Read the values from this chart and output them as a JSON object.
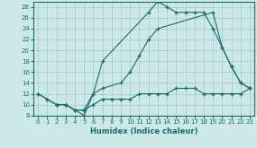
{
  "xlabel": "Humidex (Indice chaleur)",
  "bg_color": "#cce8e8",
  "line_color": "#1a6b6b",
  "grid_color": "#aacccc",
  "xlim": [
    -0.5,
    23.5
  ],
  "ylim": [
    8,
    29
  ],
  "xticks": [
    0,
    1,
    2,
    3,
    4,
    5,
    6,
    7,
    8,
    9,
    10,
    11,
    12,
    13,
    14,
    15,
    16,
    17,
    18,
    19,
    20,
    21,
    22,
    23
  ],
  "yticks": [
    8,
    10,
    12,
    14,
    16,
    18,
    20,
    22,
    24,
    26,
    28
  ],
  "line1_x": [
    0,
    1,
    2,
    3,
    4,
    5,
    6,
    7,
    12,
    13,
    14,
    15,
    16,
    17,
    18,
    19,
    20,
    21,
    22,
    23
  ],
  "line1_y": [
    12,
    11,
    10,
    10,
    9,
    8,
    12,
    18,
    27,
    29,
    28,
    27,
    27,
    27,
    27,
    24,
    20.5,
    17,
    14,
    13
  ],
  "line2_x": [
    0,
    1,
    2,
    3,
    4,
    5,
    6,
    7,
    8,
    9,
    10,
    11,
    12,
    13,
    14,
    15,
    16,
    17,
    18,
    19,
    20,
    21,
    22,
    23
  ],
  "line2_y": [
    12,
    11,
    10,
    10,
    9,
    9,
    10,
    11,
    11,
    11,
    11,
    12,
    12,
    12,
    12,
    13,
    13,
    13,
    12,
    12,
    12,
    12,
    12,
    13
  ],
  "line3_x": [
    2,
    3,
    4,
    5,
    6,
    7,
    9,
    10,
    11,
    12,
    13,
    19,
    20,
    21,
    22,
    23
  ],
  "line3_y": [
    10,
    10,
    9,
    9,
    12,
    13,
    14,
    16,
    19,
    22,
    24,
    27,
    20.5,
    17,
    14,
    13
  ]
}
